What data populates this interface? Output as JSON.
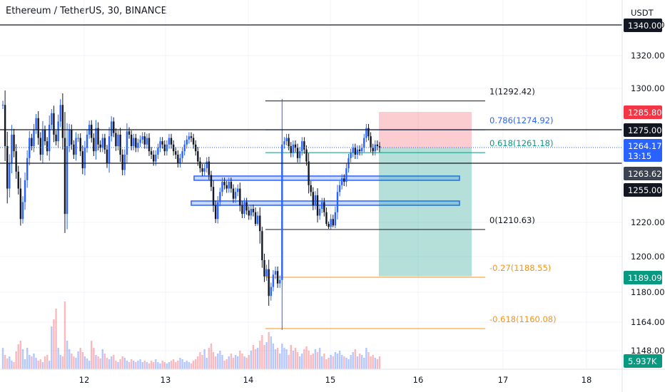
{
  "header": {
    "symbol": "Ethereum / TetherUS",
    "interval": "30",
    "exchange": "BINANCE"
  },
  "colors": {
    "up": "#2962ff",
    "down": "#131722",
    "fib_gray": "#131722",
    "fib_blue": "#2962ff",
    "fib_green": "#089981",
    "fib_orange": "#f7931a",
    "stop_zone": "#f23645",
    "target_zone": "#089981",
    "zone_box": "#2962ff"
  },
  "chart_data": {
    "type": "candlestick",
    "currency": "USDT",
    "price_axis": {
      "ticks": [
        "1340.00",
        "1320.00",
        "1300.00",
        "1220.00",
        "1200.00",
        "1180.00",
        "1164.00",
        "1148.00"
      ]
    },
    "time_axis": {
      "ticks": [
        "12",
        "13",
        "14",
        "15",
        "16",
        "17",
        "18"
      ]
    },
    "price_tags": [
      {
        "value": "1340.00",
        "style": "black"
      },
      {
        "value": "1285.80",
        "style": "red"
      },
      {
        "value": "1275.00",
        "style": "black"
      },
      {
        "value": "1264.17",
        "sub": "13:15",
        "style": "blue"
      },
      {
        "value": "1263.62",
        "style": "gray"
      },
      {
        "value": "1255.00",
        "style": "black"
      },
      {
        "value": "1189.09",
        "style": "green"
      },
      {
        "value": "5.937K",
        "style": "green"
      }
    ],
    "fib_levels": [
      {
        "label": "1(1292.42)",
        "color": "gray"
      },
      {
        "label": "0.786(1274.92)",
        "color": "blue"
      },
      {
        "label": "0.618(1261.18)",
        "color": "green"
      },
      {
        "label": "0(1210.63)",
        "color": "gray"
      },
      {
        "label": "-0.27(1188.55)",
        "color": "orange"
      },
      {
        "label": "-0.618(1160.08)",
        "color": "orange"
      }
    ],
    "series": [
      {
        "name": "ETHUSDT",
        "close": [
          1290,
          1265,
          1240,
          1255,
          1272,
          1262,
          1250,
          1240,
          1222,
          1232,
          1245,
          1258,
          1270,
          1265,
          1275,
          1282,
          1270,
          1260,
          1275,
          1268,
          1262,
          1278,
          1285,
          1272,
          1268,
          1280,
          1290,
          1270,
          1225,
          1265,
          1275,
          1266,
          1260,
          1270,
          1270,
          1262,
          1252,
          1264,
          1272,
          1278,
          1270,
          1262,
          1276,
          1266,
          1264,
          1270,
          1263,
          1255,
          1271,
          1280,
          1273,
          1265,
          1272,
          1260,
          1251,
          1260,
          1274,
          1272,
          1265,
          1270,
          1264,
          1267,
          1269,
          1271,
          1266,
          1270,
          1262,
          1260,
          1256,
          1260,
          1264,
          1268,
          1266,
          1262,
          1266,
          1270,
          1266,
          1262,
          1260,
          1255,
          1258,
          1262,
          1266,
          1269,
          1271,
          1270,
          1266,
          1262,
          1256,
          1252,
          1250,
          1252,
          1256,
          1248,
          1241,
          1230,
          1222,
          1232,
          1238,
          1244,
          1242,
          1240,
          1244,
          1240,
          1234,
          1238,
          1240,
          1230,
          1225,
          1232,
          1227,
          1224,
          1228,
          1226,
          1218,
          1224,
          1210,
          1198,
          1189,
          1193,
          1178,
          1183,
          1190,
          1192,
          1185,
          1187,
          1266,
          1268,
          1270,
          1265,
          1261,
          1266,
          1264,
          1258,
          1262,
          1268,
          1263,
          1256,
          1242,
          1238,
          1230,
          1236,
          1224,
          1228,
          1232,
          1226,
          1218,
          1214,
          1222,
          1216,
          1226,
          1238,
          1242,
          1246,
          1244,
          1252,
          1258,
          1261,
          1264,
          1260,
          1263,
          1262,
          1264,
          1270,
          1276,
          1271,
          1264,
          1262,
          1266,
          1265,
          1264
        ],
        "volume": [
          30,
          20,
          15,
          18,
          12,
          10,
          25,
          35,
          40,
          28,
          14,
          30,
          20,
          18,
          22,
          16,
          12,
          14,
          10,
          18,
          20,
          12,
          60,
          70,
          85,
          30,
          20,
          18,
          95,
          40,
          28,
          22,
          18,
          16,
          25,
          30,
          24,
          18,
          15,
          12,
          40,
          30,
          20,
          18,
          15,
          28,
          22,
          16,
          14,
          18,
          20,
          12,
          10,
          14,
          18,
          16,
          12,
          10,
          14,
          12,
          10,
          12,
          14,
          10,
          12,
          10,
          8,
          12,
          10,
          14,
          10,
          8,
          12,
          10,
          8,
          10,
          12,
          14,
          10,
          12,
          16,
          14,
          10,
          12,
          10,
          8,
          12,
          14,
          18,
          24,
          20,
          28,
          16,
          30,
          36,
          24,
          18,
          22,
          26,
          20,
          12,
          14,
          18,
          22,
          16,
          20,
          18,
          26,
          22,
          18,
          16,
          20,
          26,
          34,
          28,
          30,
          40,
          48,
          34,
          38,
          52,
          46,
          36,
          28,
          30,
          22,
          36,
          30,
          28,
          20,
          34,
          26,
          30,
          24,
          18,
          22,
          28,
          32,
          26,
          20,
          22,
          28,
          24,
          30,
          18,
          22,
          14,
          16,
          20,
          18,
          24,
          22,
          26,
          20,
          18,
          16,
          14,
          20,
          24,
          28,
          18,
          22,
          20,
          16,
          30,
          24,
          18,
          20,
          16,
          14,
          18
        ]
      }
    ],
    "trade_box": {
      "entry": 1264.17,
      "stop": 1285.8,
      "target": 1189.09
    }
  }
}
